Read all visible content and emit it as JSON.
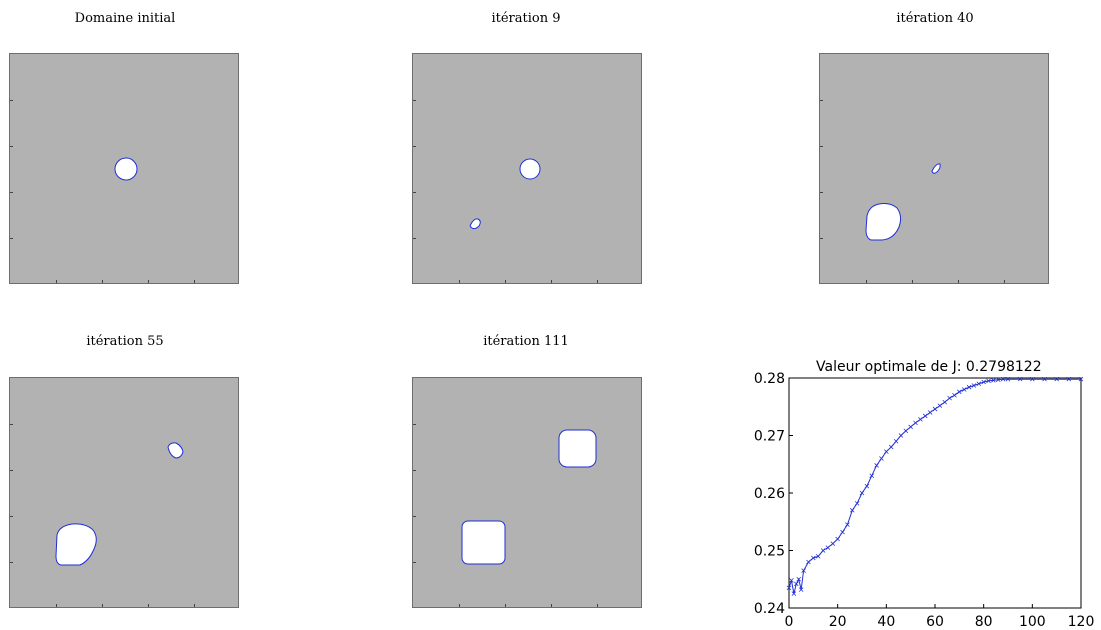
{
  "panels": [
    {
      "title": "Domaine initial"
    },
    {
      "title": "itération 9"
    },
    {
      "title": "itération 40"
    },
    {
      "title": "itération 55"
    },
    {
      "title": "itération 111"
    }
  ],
  "colors": {
    "domain_fill": "#b2b2b2",
    "hole_fill": "#ffffff",
    "hole_outline": "#1f2fd6",
    "curve": "#1f2fd6"
  },
  "chart_data": {
    "type": "line",
    "title": "Valeur optimale de J: 0.2798122",
    "xlabel": "",
    "ylabel": "",
    "xlim": [
      0,
      120
    ],
    "ylim": [
      0.24,
      0.28
    ],
    "xticks": [
      "0",
      "20",
      "40",
      "60",
      "80",
      "100",
      "120"
    ],
    "yticks": [
      "0.24",
      "0.25",
      "0.26",
      "0.27",
      "0.28"
    ],
    "grid": false,
    "series": [
      {
        "name": "",
        "x": [
          0,
          1,
          2,
          3,
          4,
          5,
          6,
          8,
          10,
          12,
          14,
          16,
          18,
          20,
          22,
          24,
          26,
          28,
          30,
          32,
          34,
          36,
          38,
          40,
          42,
          44,
          46,
          48,
          50,
          52,
          54,
          56,
          58,
          60,
          62,
          64,
          66,
          68,
          70,
          72,
          74,
          76,
          78,
          80,
          82,
          84,
          86,
          88,
          90,
          95,
          100,
          105,
          110,
          115,
          120
        ],
        "y": [
          0.2435,
          0.2448,
          0.2425,
          0.2442,
          0.245,
          0.2432,
          0.2465,
          0.248,
          0.2487,
          0.249,
          0.25,
          0.2505,
          0.2512,
          0.252,
          0.2532,
          0.2545,
          0.257,
          0.2582,
          0.26,
          0.2612,
          0.263,
          0.2648,
          0.266,
          0.2672,
          0.268,
          0.269,
          0.27,
          0.2708,
          0.2715,
          0.2722,
          0.2728,
          0.2734,
          0.274,
          0.2746,
          0.2752,
          0.2758,
          0.2765,
          0.277,
          0.2776,
          0.278,
          0.2784,
          0.2787,
          0.279,
          0.2793,
          0.2795,
          0.2796,
          0.2797,
          0.2798,
          0.2798,
          0.2798,
          0.2798,
          0.2798,
          0.2798,
          0.2798,
          0.2798
        ]
      }
    ]
  }
}
